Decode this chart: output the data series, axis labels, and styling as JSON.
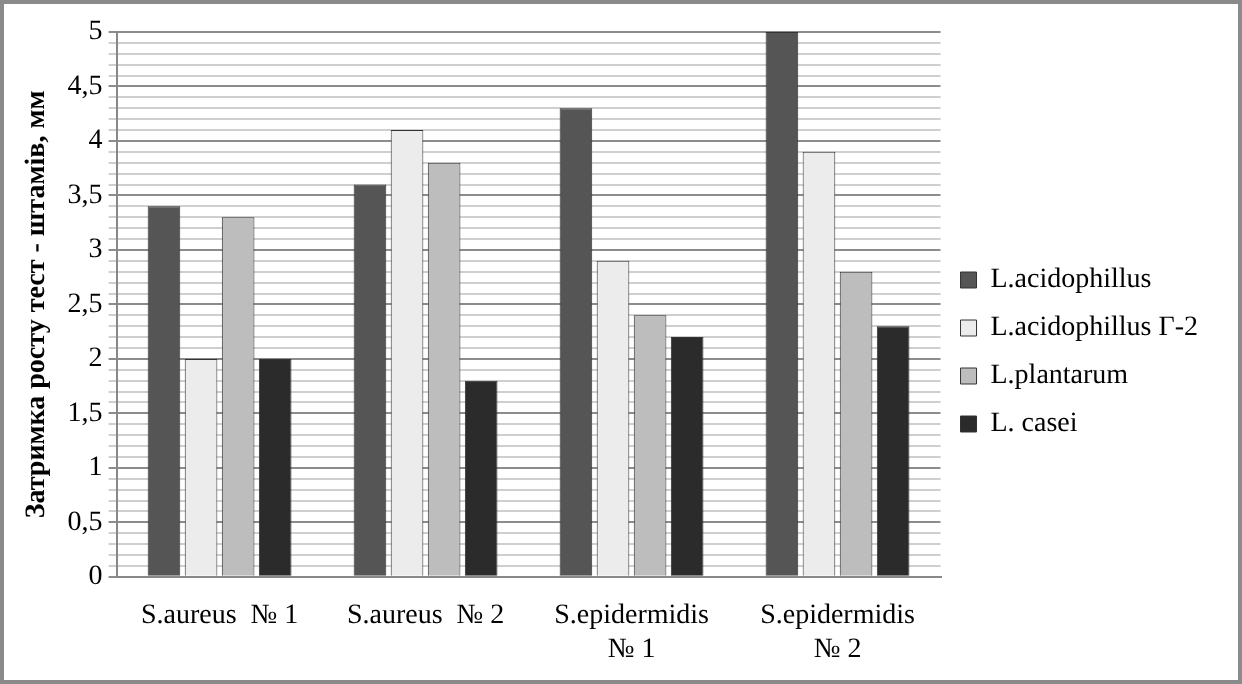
{
  "chart_data": {
    "type": "bar",
    "ylabel": "Затримка росту тест - штамів, мм",
    "categories": [
      "S.aureus  № 1",
      "S.aureus  № 2",
      "S.epidermidis\n№ 1",
      "S.epidermidis\n№ 2"
    ],
    "series": [
      {
        "name": "L.acidophillus",
        "color": "#555555",
        "values": [
          3.4,
          3.6,
          4.3,
          5.0
        ]
      },
      {
        "name": "L.acidophillus Г-2",
        "color": "#ececec",
        "values": [
          2.0,
          4.1,
          2.9,
          3.9
        ]
      },
      {
        "name": "L.plantarum",
        "color": "#bdbdbd",
        "values": [
          3.3,
          3.8,
          2.4,
          2.8
        ]
      },
      {
        "name": "L. casei",
        "color": "#2b2b2b",
        "values": [
          2.0,
          1.8,
          2.2,
          2.3
        ]
      }
    ],
    "ylim": [
      0,
      5
    ],
    "yticks": [
      {
        "value": 0,
        "label": "0"
      },
      {
        "value": 0.1,
        "label": null
      },
      {
        "value": 0.2,
        "label": null
      },
      {
        "value": 0.3,
        "label": null
      },
      {
        "value": 0.4,
        "label": null
      },
      {
        "value": 0.5,
        "label": "0,5"
      },
      {
        "value": 0.6,
        "label": null
      },
      {
        "value": 0.7,
        "label": null
      },
      {
        "value": 0.8,
        "label": null
      },
      {
        "value": 0.9,
        "label": null
      },
      {
        "value": 1,
        "label": "1"
      },
      {
        "value": 1.1,
        "label": null
      },
      {
        "value": 1.2,
        "label": null
      },
      {
        "value": 1.3,
        "label": null
      },
      {
        "value": 1.4,
        "label": null
      },
      {
        "value": 1.5,
        "label": "1,5"
      },
      {
        "value": 1.6,
        "label": null
      },
      {
        "value": 1.7,
        "label": null
      },
      {
        "value": 1.8,
        "label": null
      },
      {
        "value": 1.9,
        "label": null
      },
      {
        "value": 2,
        "label": "2"
      },
      {
        "value": 2.1,
        "label": null
      },
      {
        "value": 2.2,
        "label": null
      },
      {
        "value": 2.3,
        "label": null
      },
      {
        "value": 2.4,
        "label": null
      },
      {
        "value": 2.5,
        "label": "2,5"
      },
      {
        "value": 2.6,
        "label": null
      },
      {
        "value": 2.7,
        "label": null
      },
      {
        "value": 2.8,
        "label": null
      },
      {
        "value": 2.9,
        "label": null
      },
      {
        "value": 3,
        "label": "3"
      },
      {
        "value": 3.1,
        "label": null
      },
      {
        "value": 3.2,
        "label": null
      },
      {
        "value": 3.3,
        "label": null
      },
      {
        "value": 3.4,
        "label": null
      },
      {
        "value": 3.5,
        "label": "3,5"
      },
      {
        "value": 3.6,
        "label": null
      },
      {
        "value": 3.7,
        "label": null
      },
      {
        "value": 3.8,
        "label": null
      },
      {
        "value": 3.9,
        "label": null
      },
      {
        "value": 4,
        "label": "4"
      },
      {
        "value": 4.1,
        "label": null
      },
      {
        "value": 4.2,
        "label": null
      },
      {
        "value": 4.3,
        "label": null
      },
      {
        "value": 4.4,
        "label": null
      },
      {
        "value": 4.5,
        "label": "4,5"
      },
      {
        "value": 4.6,
        "label": null
      },
      {
        "value": 4.7,
        "label": null
      },
      {
        "value": 4.8,
        "label": null
      },
      {
        "value": 4.9,
        "label": null
      },
      {
        "value": 5,
        "label": "5"
      }
    ],
    "grid": "y",
    "legend": "right"
  }
}
